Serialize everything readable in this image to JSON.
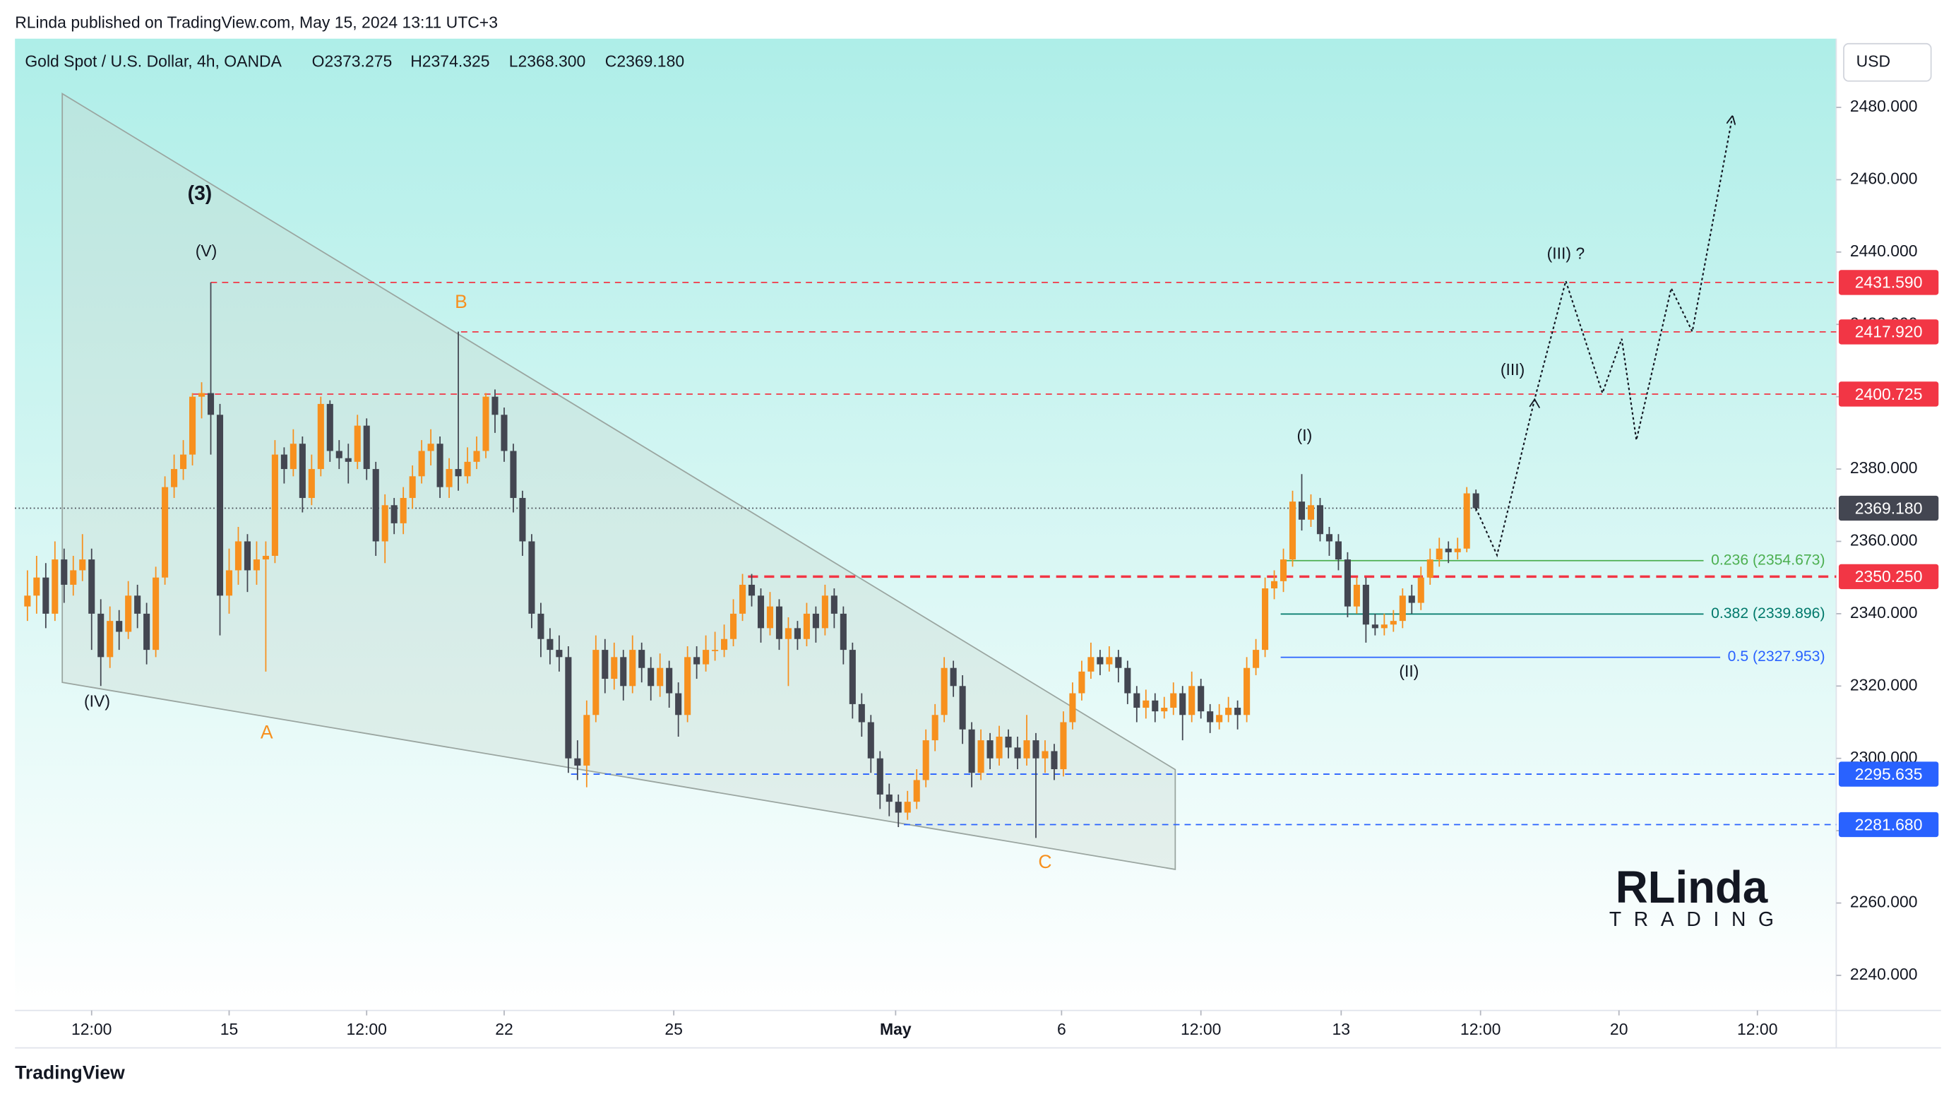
{
  "header": {
    "published": "RLinda published on TradingView.com, May 15, 2024 13:11 UTC+3"
  },
  "footer": {
    "brand": "TradingView"
  },
  "watermark": {
    "name": "RLinda",
    "sub": "TRADING"
  },
  "chart_data": {
    "type": "candlestick",
    "symbol": "Gold Spot / U.S. Dollar, 4h, OANDA",
    "ohlc_labels": [
      "O2373.275",
      "H2374.325",
      "L2368.300",
      "C2369.180"
    ],
    "currency": "USD",
    "colors": {
      "up": "#f7901e",
      "down": "#434651"
    },
    "xlim": [
      -1.36,
      197.3
    ],
    "ylim": [
      2230.3,
      2499
    ],
    "xticks": [
      {
        "value": 7,
        "label": "12:00"
      },
      {
        "value": 22,
        "label": "15"
      },
      {
        "value": 37,
        "label": "12:00"
      },
      {
        "value": 52,
        "label": "22"
      },
      {
        "value": 70.5,
        "label": "25"
      },
      {
        "value": 94.7,
        "label": "May"
      },
      {
        "value": 112.8,
        "label": "6"
      },
      {
        "value": 128,
        "label": "12:00"
      },
      {
        "value": 143.3,
        "label": "13"
      },
      {
        "value": 158.5,
        "label": "12:00"
      },
      {
        "value": 173.6,
        "label": "20"
      },
      {
        "value": 188.7,
        "label": "12:00"
      }
    ],
    "yticks": [
      {
        "value": 2240,
        "label": "2240.000"
      },
      {
        "value": 2260,
        "label": "2260.000"
      },
      {
        "value": 2280,
        "label": "2280.000"
      },
      {
        "value": 2300,
        "label": "2300.000"
      },
      {
        "value": 2320,
        "label": "2320.000"
      },
      {
        "value": 2340,
        "label": "2340.000"
      },
      {
        "value": 2360,
        "label": "2360.000"
      },
      {
        "value": 2380,
        "label": "2380.000"
      },
      {
        "value": 2400,
        "label": "2400.000"
      },
      {
        "value": 2420,
        "label": "2420.000"
      },
      {
        "value": 2440,
        "label": "2440.000"
      },
      {
        "value": 2460,
        "label": "2460.000"
      },
      {
        "value": 2480,
        "label": "2480.000"
      }
    ],
    "candles": [
      [
        2342,
        2352,
        2338,
        2345
      ],
      [
        2345,
        2356,
        2340,
        2350
      ],
      [
        2350,
        2354,
        2336,
        2340
      ],
      [
        2340,
        2360,
        2338,
        2355
      ],
      [
        2355,
        2358,
        2343,
        2348
      ],
      [
        2348,
        2356,
        2345,
        2352
      ],
      [
        2352,
        2362,
        2349,
        2355
      ],
      [
        2355,
        2358,
        2330,
        2340
      ],
      [
        2340,
        2344,
        2320,
        2328
      ],
      [
        2328,
        2342,
        2325,
        2338
      ],
      [
        2338,
        2341,
        2330,
        2335
      ],
      [
        2335,
        2349,
        2333,
        2345
      ],
      [
        2345,
        2348,
        2336,
        2340
      ],
      [
        2340,
        2343,
        2326,
        2330
      ],
      [
        2330,
        2353,
        2328,
        2350
      ],
      [
        2350,
        2378,
        2348,
        2375
      ],
      [
        2375,
        2384,
        2372,
        2380
      ],
      [
        2380,
        2388,
        2377,
        2384
      ],
      [
        2384,
        2401,
        2381,
        2400
      ],
      [
        2400,
        2404,
        2394,
        2401
      ],
      [
        2401,
        2431.6,
        2384,
        2395
      ],
      [
        2395,
        2398,
        2334,
        2345
      ],
      [
        2345,
        2358,
        2340,
        2352
      ],
      [
        2352,
        2364,
        2348,
        2360
      ],
      [
        2360,
        2362,
        2346,
        2352
      ],
      [
        2352,
        2360,
        2348,
        2355
      ],
      [
        2355,
        2360,
        2324,
        2356
      ],
      [
        2356,
        2388,
        2354,
        2384
      ],
      [
        2384,
        2386,
        2376,
        2380
      ],
      [
        2380,
        2391,
        2378,
        2387
      ],
      [
        2387,
        2389,
        2368,
        2372
      ],
      [
        2372,
        2384,
        2370,
        2380
      ],
      [
        2380,
        2400,
        2378,
        2398
      ],
      [
        2398,
        2399,
        2382,
        2385
      ],
      [
        2385,
        2388,
        2380,
        2383
      ],
      [
        2383,
        2387,
        2376,
        2382
      ],
      [
        2382,
        2395,
        2380,
        2392
      ],
      [
        2392,
        2394,
        2377,
        2380
      ],
      [
        2380,
        2382,
        2356,
        2360
      ],
      [
        2360,
        2373,
        2354,
        2370
      ],
      [
        2370,
        2372,
        2362,
        2365
      ],
      [
        2365,
        2375,
        2362,
        2372
      ],
      [
        2372,
        2381,
        2369,
        2378
      ],
      [
        2378,
        2388,
        2376,
        2385
      ],
      [
        2385,
        2391,
        2381,
        2387
      ],
      [
        2387,
        2389,
        2372,
        2375
      ],
      [
        2375,
        2383,
        2372,
        2380
      ],
      [
        2380,
        2418,
        2374,
        2378
      ],
      [
        2378,
        2386,
        2376,
        2382
      ],
      [
        2382,
        2389,
        2380,
        2385
      ],
      [
        2385,
        2401,
        2383,
        2400
      ],
      [
        2400,
        2402,
        2390,
        2395
      ],
      [
        2395,
        2397,
        2382,
        2385
      ],
      [
        2385,
        2387,
        2368,
        2372
      ],
      [
        2372,
        2374,
        2356,
        2360
      ],
      [
        2360,
        2362,
        2336,
        2340
      ],
      [
        2340,
        2343,
        2328,
        2333
      ],
      [
        2333,
        2336,
        2326,
        2330
      ],
      [
        2330,
        2334,
        2324,
        2328
      ],
      [
        2328,
        2331,
        2296,
        2300
      ],
      [
        2300,
        2305,
        2294,
        2298
      ],
      [
        2298,
        2316,
        2292,
        2312
      ],
      [
        2312,
        2334,
        2310,
        2330
      ],
      [
        2330,
        2333,
        2318,
        2322
      ],
      [
        2322,
        2332,
        2319,
        2328
      ],
      [
        2328,
        2330,
        2316,
        2320
      ],
      [
        2320,
        2334,
        2318,
        2330
      ],
      [
        2330,
        2332,
        2321,
        2325
      ],
      [
        2325,
        2328,
        2316,
        2320
      ],
      [
        2320,
        2329,
        2317,
        2325
      ],
      [
        2325,
        2327,
        2314,
        2318
      ],
      [
        2318,
        2321,
        2306,
        2312
      ],
      [
        2312,
        2331,
        2310,
        2328
      ],
      [
        2328,
        2331,
        2322,
        2326
      ],
      [
        2326,
        2334,
        2324,
        2330
      ],
      [
        2330,
        2335,
        2327,
        2330
      ],
      [
        2330,
        2337,
        2328,
        2333
      ],
      [
        2333,
        2344,
        2331,
        2340
      ],
      [
        2340,
        2351,
        2338,
        2348
      ],
      [
        2348,
        2351,
        2342,
        2345
      ],
      [
        2345,
        2347,
        2332,
        2336
      ],
      [
        2336,
        2346,
        2334,
        2342
      ],
      [
        2342,
        2344,
        2330,
        2333
      ],
      [
        2333,
        2339,
        2320,
        2336
      ],
      [
        2336,
        2338,
        2330,
        2333
      ],
      [
        2333,
        2343,
        2331,
        2340
      ],
      [
        2340,
        2342,
        2332,
        2336
      ],
      [
        2336,
        2348,
        2334,
        2345
      ],
      [
        2345,
        2347,
        2336,
        2340
      ],
      [
        2340,
        2342,
        2326,
        2330
      ],
      [
        2330,
        2332,
        2311,
        2315
      ],
      [
        2315,
        2318,
        2306,
        2310
      ],
      [
        2310,
        2312,
        2296,
        2300
      ],
      [
        2300,
        2302,
        2286,
        2290
      ],
      [
        2290,
        2293,
        2284,
        2288
      ],
      [
        2288,
        2290,
        2281,
        2285
      ],
      [
        2285,
        2291,
        2283,
        2288
      ],
      [
        2288,
        2297,
        2286,
        2294
      ],
      [
        2294,
        2308,
        2292,
        2305
      ],
      [
        2305,
        2315,
        2302,
        2312
      ],
      [
        2312,
        2328,
        2310,
        2325
      ],
      [
        2325,
        2327,
        2317,
        2320
      ],
      [
        2320,
        2323,
        2304,
        2308
      ],
      [
        2308,
        2310,
        2292,
        2296
      ],
      [
        2296,
        2308,
        2294,
        2305
      ],
      [
        2305,
        2307,
        2297,
        2300
      ],
      [
        2300,
        2309,
        2298,
        2306
      ],
      [
        2306,
        2308,
        2300,
        2303
      ],
      [
        2303,
        2306,
        2297,
        2300
      ],
      [
        2300,
        2312,
        2298,
        2305
      ],
      [
        2305,
        2307,
        2278,
        2300
      ],
      [
        2300,
        2305,
        2296,
        2302
      ],
      [
        2302,
        2304,
        2294,
        2297
      ],
      [
        2297,
        2313,
        2295,
        2310
      ],
      [
        2310,
        2321,
        2308,
        2318
      ],
      [
        2318,
        2327,
        2316,
        2324
      ],
      [
        2324,
        2332,
        2322,
        2328
      ],
      [
        2328,
        2330,
        2323,
        2326
      ],
      [
        2326,
        2331,
        2324,
        2328
      ],
      [
        2328,
        2330,
        2321,
        2325
      ],
      [
        2325,
        2327,
        2315,
        2318
      ],
      [
        2318,
        2320,
        2310,
        2314
      ],
      [
        2314,
        2319,
        2311,
        2316
      ],
      [
        2316,
        2318,
        2310,
        2313
      ],
      [
        2313,
        2317,
        2311,
        2314
      ],
      [
        2314,
        2321,
        2312,
        2318
      ],
      [
        2318,
        2320,
        2305,
        2312
      ],
      [
        2312,
        2324,
        2310,
        2320
      ],
      [
        2320,
        2322,
        2311,
        2313
      ],
      [
        2313,
        2315,
        2307,
        2310
      ],
      [
        2310,
        2315,
        2308,
        2312
      ],
      [
        2312,
        2317,
        2310,
        2314
      ],
      [
        2314,
        2316,
        2308,
        2312
      ],
      [
        2312,
        2328,
        2310,
        2325
      ],
      [
        2325,
        2333,
        2323,
        2330
      ],
      [
        2330,
        2350,
        2328,
        2347
      ],
      [
        2347,
        2352,
        2344,
        2349
      ],
      [
        2349,
        2358,
        2346,
        2355
      ],
      [
        2355,
        2374,
        2353,
        2371
      ],
      [
        2371,
        2378.6,
        2363,
        2366
      ],
      [
        2366,
        2373,
        2364,
        2370
      ],
      [
        2370,
        2372,
        2360,
        2362
      ],
      [
        2362,
        2364,
        2356,
        2360
      ],
      [
        2360,
        2362,
        2352,
        2355
      ],
      [
        2355,
        2357,
        2339,
        2342
      ],
      [
        2342,
        2350,
        2340,
        2348
      ],
      [
        2348,
        2350,
        2332,
        2337
      ],
      [
        2337,
        2340,
        2334,
        2336
      ],
      [
        2336,
        2340,
        2334,
        2337
      ],
      [
        2337,
        2341,
        2335,
        2338
      ],
      [
        2338,
        2347,
        2336,
        2345
      ],
      [
        2345,
        2348,
        2340,
        2343
      ],
      [
        2343,
        2353,
        2341,
        2350
      ],
      [
        2350,
        2358,
        2348,
        2355
      ],
      [
        2355,
        2361,
        2353,
        2358
      ],
      [
        2358,
        2360,
        2354,
        2357
      ],
      [
        2357,
        2361,
        2355,
        2358
      ],
      [
        2358,
        2375,
        2357,
        2373.275
      ],
      [
        2373.275,
        2374.325,
        2368.3,
        2369.18
      ]
    ],
    "levels": [
      {
        "value": 2431.59,
        "label": "2431.590",
        "from": 20,
        "color": "#f23645"
      },
      {
        "value": 2417.92,
        "label": "2417.920",
        "from": 47.3,
        "color": "#f23645"
      },
      {
        "value": 2400.725,
        "label": "2400.725",
        "from": 18,
        "color": "#f23645"
      },
      {
        "value": 2350.25,
        "label": "2350.250",
        "from": 78.6,
        "color": "#f23645",
        "bold": true
      },
      {
        "value": 2295.635,
        "label": "2295.635",
        "from": 59.3,
        "color": "#2962ff"
      },
      {
        "value": 2281.68,
        "label": "2281.680",
        "from": 95.6,
        "color": "#2962ff"
      }
    ],
    "current_price": {
      "value": 2369.18,
      "label": "2369.180",
      "color": "#434651"
    },
    "fib": [
      {
        "label": "0.236 (2354.673)",
        "value": 2354.673,
        "from": 136.7,
        "color": "#4caf50"
      },
      {
        "label": "0.382 (2339.896)",
        "value": 2339.896,
        "from": 136.7,
        "color": "#00796b"
      },
      {
        "label": "0.5 (2327.953)",
        "value": 2327.953,
        "from": 136.7,
        "color": "#2962ff"
      }
    ],
    "projection": {
      "x": [
        158,
        160.3,
        164.4,
        167.8,
        171.8,
        173.9,
        175.5,
        179.3,
        181.6,
        185.9
      ],
      "y": [
        2369.18,
        2356.2,
        2399.3,
        2432,
        2401,
        2416,
        2388,
        2430,
        2418,
        2476.5
      ]
    },
    "wedge": {
      "x": [
        3.8,
        125.2,
        125.2,
        3.8
      ],
      "y": [
        2483.8,
        2296.9,
        2269.3,
        2321
      ]
    },
    "annotations": [
      {
        "text": "(3)",
        "x": 18.8,
        "y": 2455.9,
        "bold": true
      },
      {
        "text": "(V)",
        "x": 19.5,
        "y": 2440
      },
      {
        "text": "B",
        "x": 47.3,
        "y": 2425.9,
        "color": "#f7901e"
      },
      {
        "text": "(IV)",
        "x": 7.6,
        "y": 2315.5
      },
      {
        "text": "A",
        "x": 26.1,
        "y": 2306.9,
        "color": "#f7901e"
      },
      {
        "text": "C",
        "x": 111,
        "y": 2271,
        "color": "#f7901e"
      },
      {
        "text": "(I)",
        "x": 139.3,
        "y": 2389
      },
      {
        "text": "(II)",
        "x": 150.7,
        "y": 2323.8
      },
      {
        "text": "(III)",
        "x": 162,
        "y": 2407.2
      },
      {
        "text": "(III) ?",
        "x": 167.8,
        "y": 2439.3
      }
    ]
  }
}
